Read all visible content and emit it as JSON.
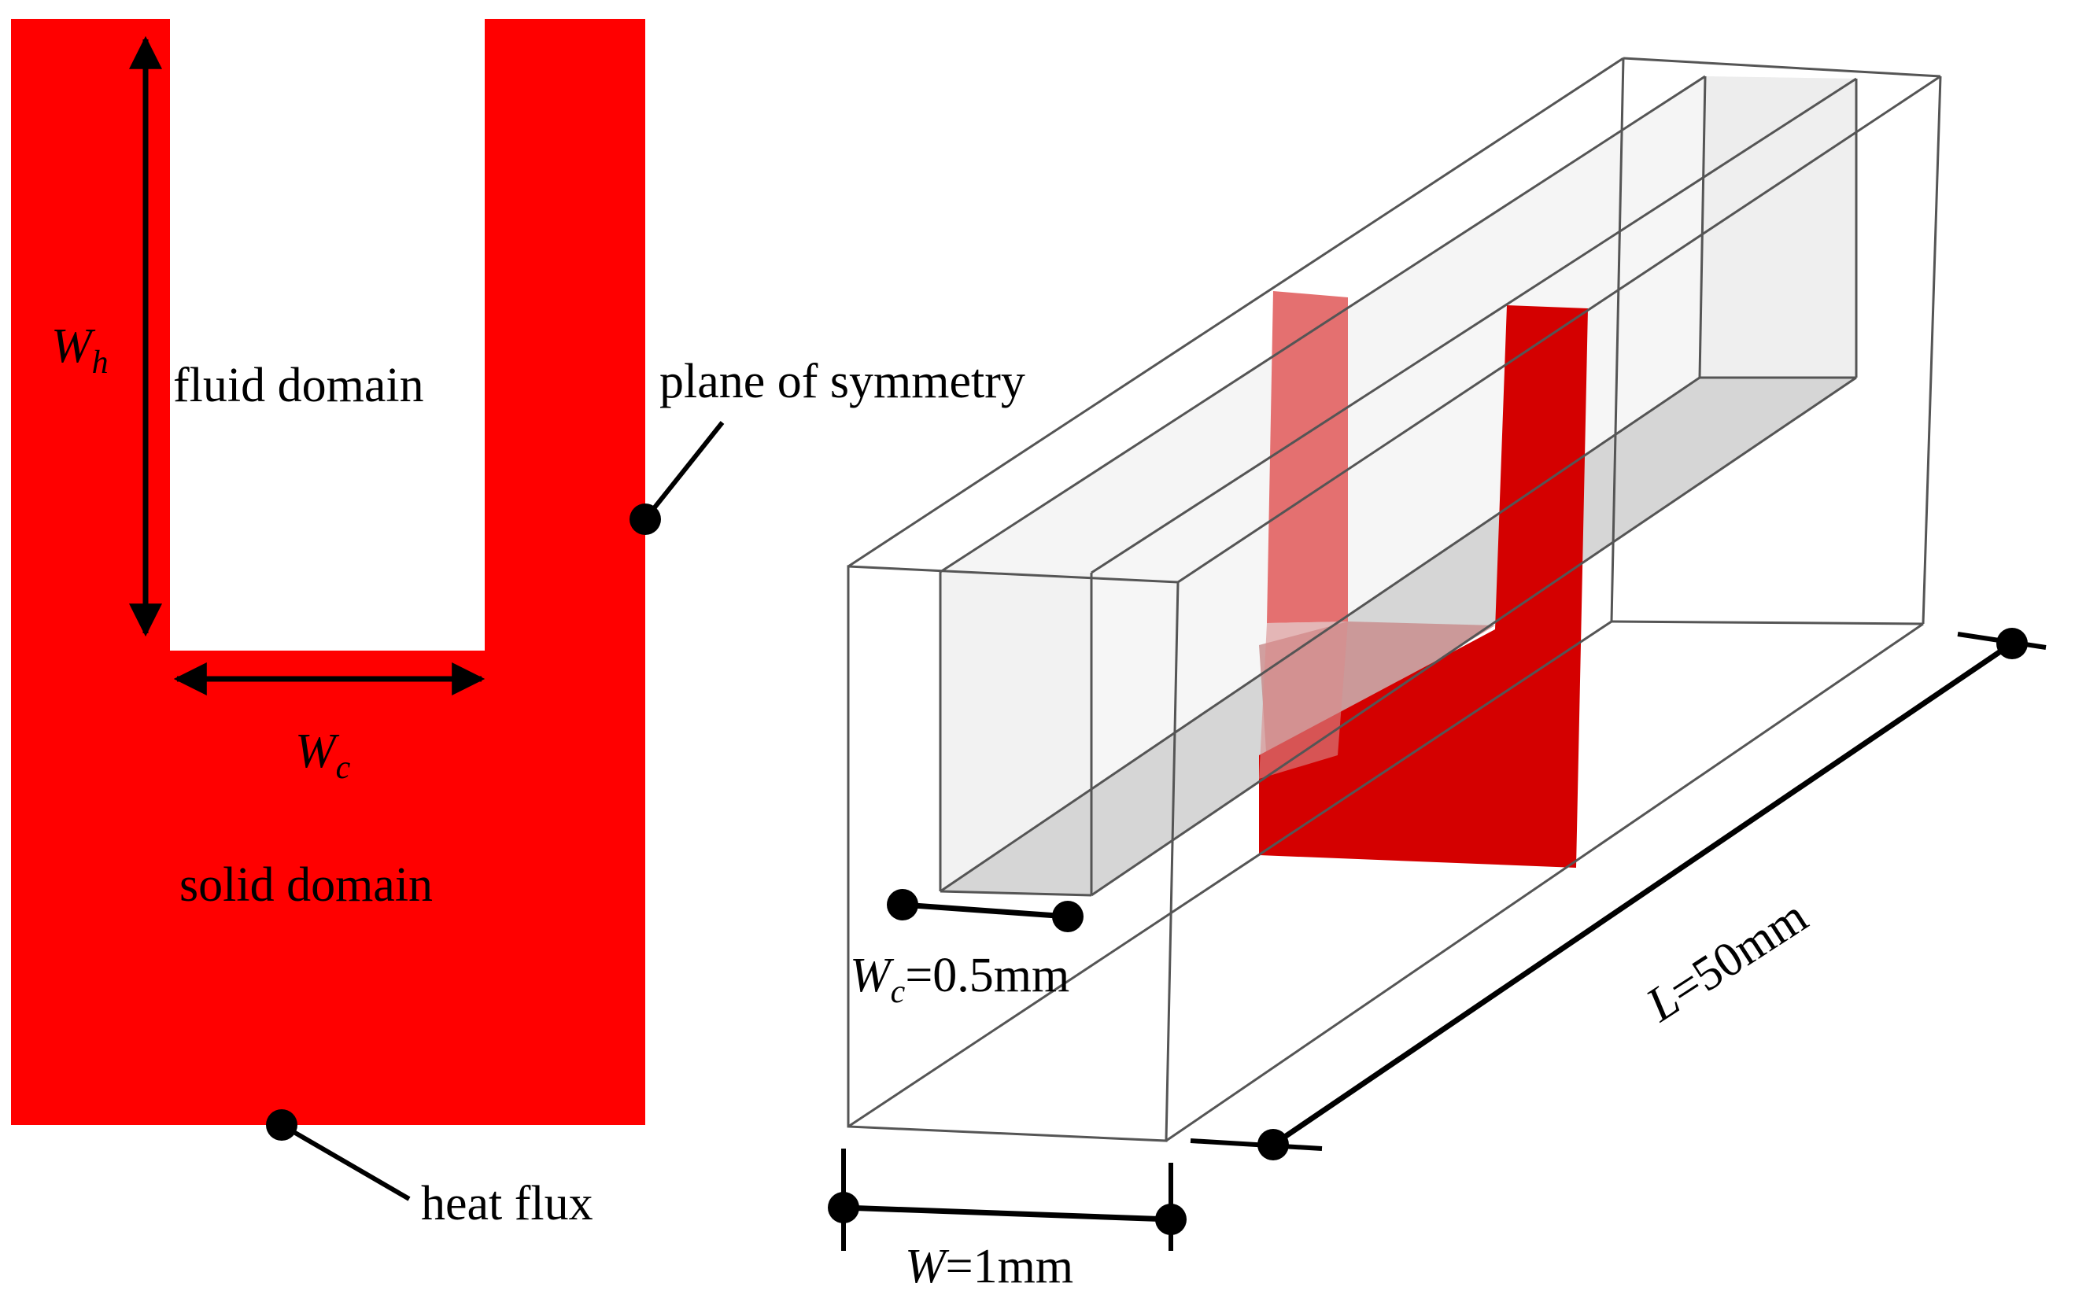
{
  "colors": {
    "solid": "#ff0000",
    "section": "#d40000",
    "section_light": "#e47070",
    "channel_glass": "#f2f2f2",
    "channel_floor": "#d6d6d6",
    "outline": "#555555",
    "ink": "#000000"
  },
  "cross_section": {
    "fluid_label": "fluid domain",
    "solid_label": "solid domain",
    "height_symbol": "W",
    "height_subscript": "h",
    "width_symbol": "W",
    "width_subscript": "c",
    "symmetry_label": "plane of symmetry",
    "heat_flux_label": "heat flux"
  },
  "isometric": {
    "channel_width_symbol": "W",
    "channel_width_subscript": "c",
    "channel_width_value": "=0.5mm",
    "total_width_symbol": "W",
    "total_width_value": "=1mm",
    "length_symbol": "L",
    "length_value": "=50mm"
  }
}
